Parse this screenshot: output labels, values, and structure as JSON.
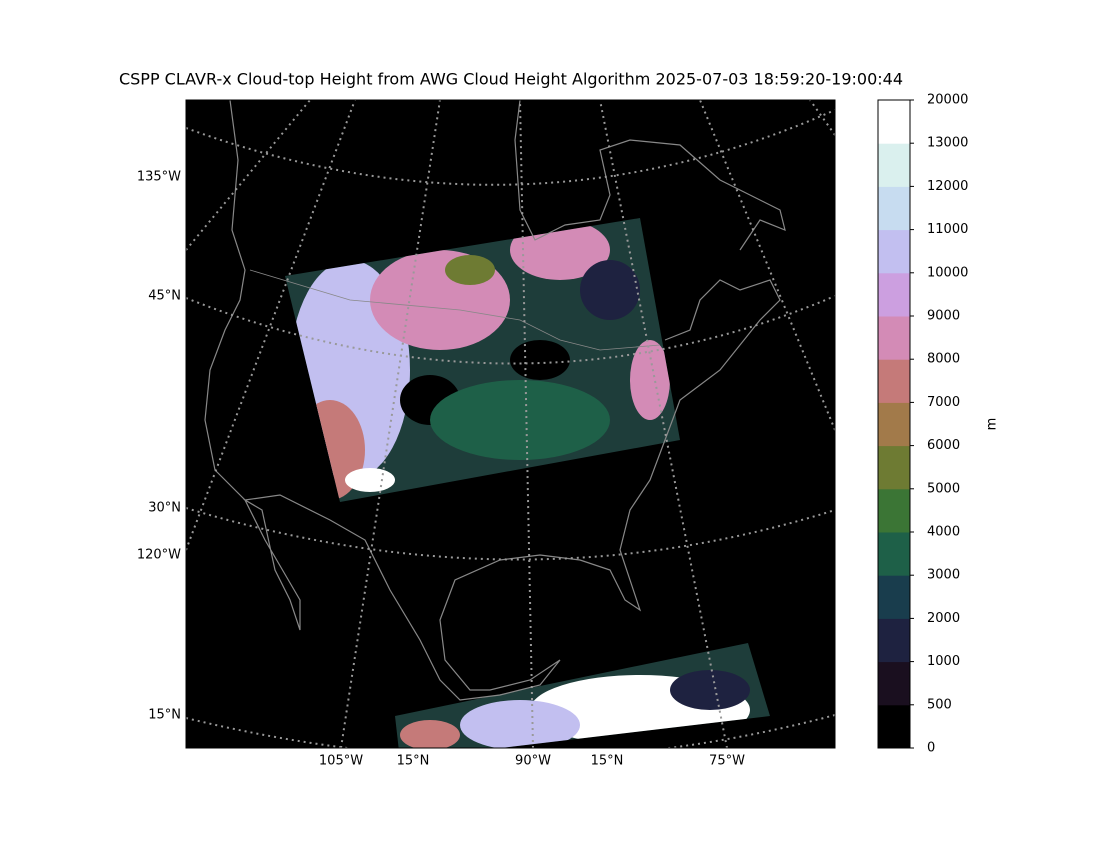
{
  "title": "CSPP CLAVR-x Cloud-top Height from AWG Cloud Height Algorithm 2025-07-03 18:59:20-19:00:44",
  "map": {
    "left_labels": [
      "135°W",
      "45°N",
      "30°N",
      "120°W",
      "15°N"
    ],
    "bottom_labels": [
      "105°W",
      "15°N",
      "90°W",
      "15°N",
      "75°W"
    ]
  },
  "colorbar": {
    "label": "m",
    "ticks": [
      0,
      500,
      1000,
      2000,
      3000,
      4000,
      5000,
      6000,
      7000,
      8000,
      9000,
      10000,
      11000,
      12000,
      13000,
      20000
    ],
    "colors": [
      "#000000",
      "#1a0f1f",
      "#1e2240",
      "#193d4d",
      "#1e6048",
      "#3b7535",
      "#6e7b33",
      "#a27a4a",
      "#c57a79",
      "#d38bb6",
      "#cc9fe0",
      "#c2bff0",
      "#c7dcf0",
      "#daf0ee",
      "#ffffff"
    ]
  }
}
